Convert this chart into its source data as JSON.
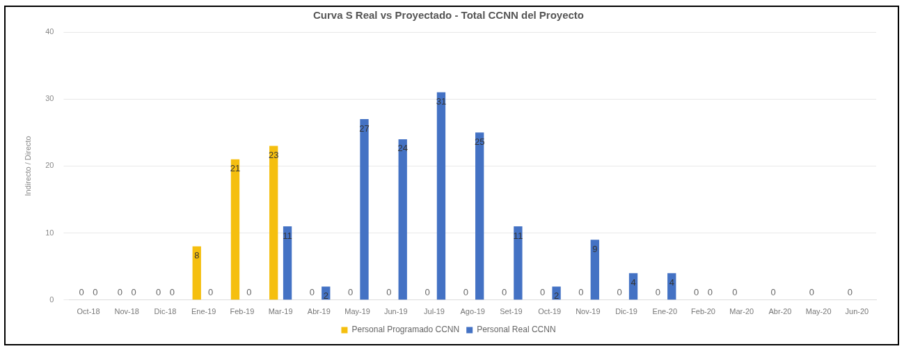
{
  "chart_data": {
    "type": "bar",
    "title": "Curva S Real vs Proyectado - Total CCNN del Proyecto",
    "ylabel": "Indirecto / Directo",
    "categories": [
      "Oct-18",
      "Nov-18",
      "Dic-18",
      "Ene-19",
      "Feb-19",
      "Mar-19",
      "Abr-19",
      "May-19",
      "Jun-19",
      "Jul-19",
      "Ago-19",
      "Set-19",
      "Oct-19",
      "Nov-19",
      "Dic-19",
      "Ene-20",
      "Feb-20",
      "Mar-20",
      "Abr-20",
      "May-20",
      "Jun-20"
    ],
    "series": [
      {
        "name": "Personal Programado CCNN",
        "color": "#f5bf0f",
        "values": [
          0,
          0,
          0,
          8,
          21,
          23,
          0,
          0,
          0,
          0,
          0,
          0,
          0,
          0,
          0,
          0,
          0,
          0,
          0,
          0,
          0
        ]
      },
      {
        "name": "Personal Real CCNN",
        "color": "#4472c4",
        "values": [
          0,
          0,
          0,
          0,
          0,
          11,
          2,
          27,
          24,
          31,
          25,
          11,
          2,
          9,
          4,
          4,
          0,
          null,
          null,
          null,
          null
        ]
      }
    ],
    "ylim": [
      0,
      40
    ],
    "yticks": [
      0,
      10,
      20,
      30,
      40
    ],
    "grid": "y",
    "legend": "bottom",
    "data_labels": true
  }
}
